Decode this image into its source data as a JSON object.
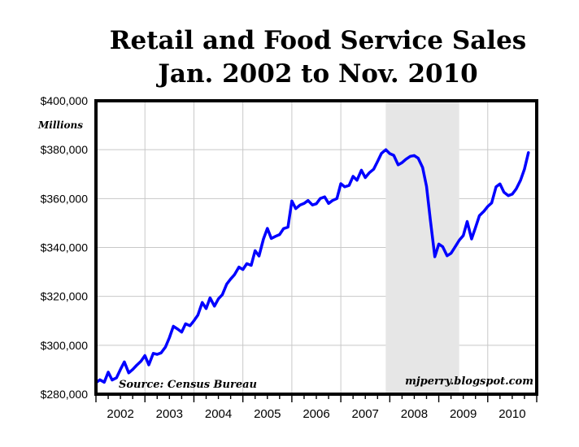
{
  "chart_data": {
    "type": "line",
    "title_line1": "Retail and Food Service Sales",
    "title_line2": "Jan. 2002 to Nov. 2010",
    "ylabel": "Millions",
    "source": "Source: Census Bureau",
    "watermark": "mjperry.blogspot.com",
    "ylim": [
      280000,
      400000
    ],
    "xlim": [
      2002.0,
      2011.0
    ],
    "y_ticks": [
      280000,
      300000,
      320000,
      340000,
      360000,
      380000,
      400000
    ],
    "y_tick_labels": [
      "$280,000",
      "$300,000",
      "$320,000",
      "$340,000",
      "$360,000",
      "$380,000",
      "$400,000"
    ],
    "x_tick_labels": [
      "2002",
      "2003",
      "2004",
      "2005",
      "2006",
      "2007",
      "2008",
      "2009",
      "2010"
    ],
    "grid": true,
    "recession_shade": [
      2007.917,
      2009.417
    ],
    "line_color": "#0000ff",
    "shade_color": "#e6e6e6",
    "series": [
      {
        "x": [
          2002.0,
          2002.08,
          2002.17,
          2002.25,
          2002.33,
          2002.42,
          2002.5,
          2002.58,
          2002.67,
          2002.75,
          2002.83,
          2002.92,
          2003.0,
          2003.08,
          2003.17,
          2003.25,
          2003.33,
          2003.42,
          2003.5,
          2003.58,
          2003.67,
          2003.75,
          2003.83,
          2003.92,
          2004.0,
          2004.08,
          2004.17,
          2004.25,
          2004.33,
          2004.42,
          2004.5,
          2004.58,
          2004.67,
          2004.75,
          2004.83,
          2004.92,
          2005.0,
          2005.08,
          2005.17,
          2005.25,
          2005.33,
          2005.42,
          2005.5,
          2005.58,
          2005.67,
          2005.75,
          2005.83,
          2005.92,
          2006.0,
          2006.08,
          2006.17,
          2006.25,
          2006.33,
          2006.42,
          2006.5,
          2006.58,
          2006.67,
          2006.75,
          2006.83,
          2006.92,
          2007.0,
          2007.08,
          2007.17,
          2007.25,
          2007.33,
          2007.42,
          2007.5,
          2007.58,
          2007.67,
          2007.75,
          2007.83,
          2007.92,
          2008.0,
          2008.08,
          2008.17,
          2008.25,
          2008.33,
          2008.42,
          2008.5,
          2008.58,
          2008.67,
          2008.75,
          2008.83,
          2008.92,
          2009.0,
          2009.08,
          2009.17,
          2009.25,
          2009.33,
          2009.42,
          2009.5,
          2009.58,
          2009.67,
          2009.75,
          2009.83,
          2009.92,
          2010.0,
          2010.08,
          2010.17,
          2010.25,
          2010.33,
          2010.42,
          2010.5,
          2010.58,
          2010.67,
          2010.75,
          2010.83
        ],
        "values": [
          284700,
          285900,
          284900,
          289000,
          285800,
          286700,
          290100,
          293200,
          288700,
          290100,
          291800,
          293500,
          295800,
          292000,
          296700,
          296300,
          296900,
          299300,
          303100,
          307800,
          306600,
          305400,
          308800,
          308000,
          310000,
          312300,
          317500,
          315000,
          319400,
          316000,
          319000,
          320700,
          325000,
          327100,
          328900,
          332000,
          331000,
          333400,
          332700,
          338700,
          336500,
          343500,
          347800,
          343700,
          344600,
          345300,
          347700,
          348300,
          359000,
          355900,
          357400,
          358000,
          359200,
          357400,
          357900,
          360000,
          360700,
          358000,
          359200,
          360000,
          366100,
          364800,
          365400,
          369100,
          367500,
          371600,
          368600,
          370500,
          372000,
          375200,
          378500,
          380000,
          378400,
          377700,
          373800,
          374700,
          376100,
          377300,
          377600,
          376500,
          372700,
          365000,
          351000,
          336200,
          341400,
          340300,
          336600,
          337600,
          340100,
          343000,
          344900,
          350600,
          343500,
          348100,
          353000,
          354800,
          356800,
          358200,
          364800,
          366000,
          362600,
          361200,
          361800,
          363900,
          367500,
          372000,
          378800
        ]
      }
    ]
  }
}
